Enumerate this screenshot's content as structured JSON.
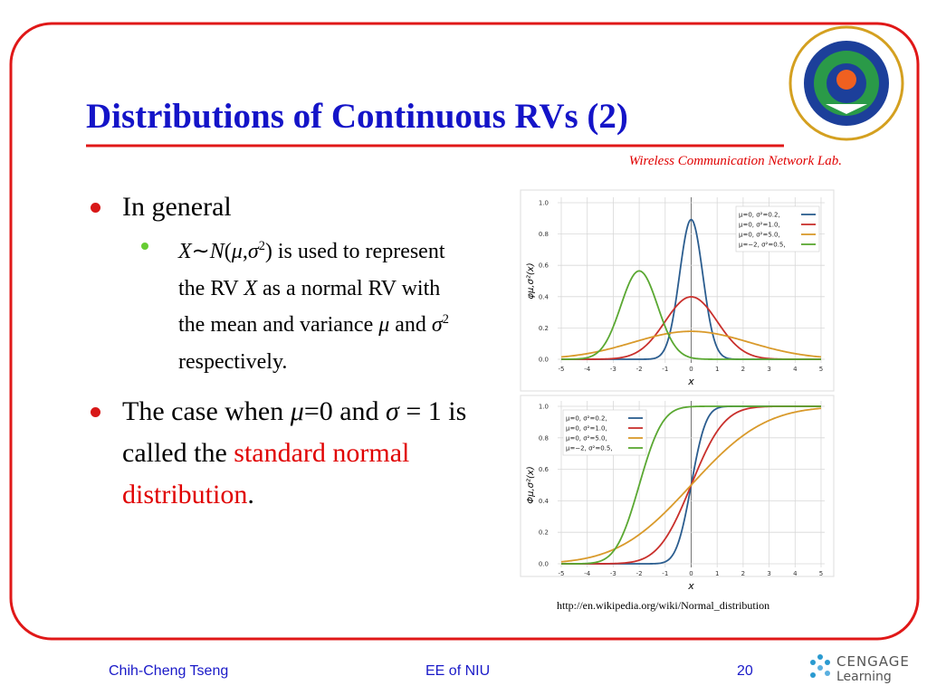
{
  "header": {
    "title": "Distributions of Continuous RVs (2)",
    "lab": "Wireless Communication Network Lab."
  },
  "bullets": [
    {
      "level": 1,
      "segments": [
        {
          "t": "In general"
        }
      ]
    },
    {
      "level": 2,
      "segments": [
        {
          "t": "X",
          "s": "i"
        },
        {
          "t": "∼"
        },
        {
          "t": "N",
          "s": "i"
        },
        {
          "t": "("
        },
        {
          "t": "μ",
          "s": "i"
        },
        {
          "t": ","
        },
        {
          "t": "σ",
          "s": "i"
        },
        {
          "t": "2",
          "s": "sup"
        },
        {
          "t": ") is used to represent the RV "
        },
        {
          "t": "X",
          "s": "i"
        },
        {
          "t": " as a normal RV with the mean and variance "
        },
        {
          "t": "μ",
          "s": "i"
        },
        {
          "t": " and "
        },
        {
          "t": "σ",
          "s": "i"
        },
        {
          "t": "2",
          "s": "sup"
        },
        {
          "t": " respectively."
        }
      ]
    },
    {
      "level": 1,
      "segments": [
        {
          "t": "The case when "
        },
        {
          "t": "μ",
          "s": "i"
        },
        {
          "t": "=0 and "
        },
        {
          "t": "σ",
          "s": "i"
        },
        {
          "t": " = 1 is called the "
        },
        {
          "t": "standard normal distribution",
          "s": "red"
        },
        {
          "t": "."
        }
      ]
    }
  ],
  "figures": [
    {
      "type": "pdf",
      "ylabel": "φμ,σ²(x)",
      "xlabel": "x",
      "xlim": [
        -5,
        5
      ],
      "ylim": [
        0,
        1
      ],
      "xticks": [
        -5,
        -4,
        -3,
        -2,
        -1,
        0,
        1,
        2,
        3,
        4,
        5
      ],
      "yticks": [
        {
          "value": 0,
          "label": "0.0"
        },
        0.2,
        0.4,
        0.6,
        0.8,
        {
          "value": 1,
          "label": "1.0"
        }
      ],
      "grid": true,
      "legend": "upper right",
      "series": [
        {
          "name": "μ=0,   σ²=0.2,",
          "color": "#2b5d8f",
          "mu": 0,
          "sigma2": 0.2
        },
        {
          "name": "μ=0,   σ²=1.0,",
          "color": "#c9302c",
          "mu": 0,
          "sigma2": 1.0
        },
        {
          "name": "μ=0,   σ²=5.0,",
          "color": "#d99a2b",
          "mu": 0,
          "sigma2": 5.0
        },
        {
          "name": "μ=−2, σ²=0.5,",
          "color": "#5aa832",
          "mu": -2,
          "sigma2": 0.5
        }
      ]
    },
    {
      "type": "cdf",
      "ylabel": "Φμ,σ²(x)",
      "xlabel": "x",
      "xlim": [
        -5,
        5
      ],
      "ylim": [
        0,
        1
      ],
      "xticks": [
        -5,
        -4,
        -3,
        -2,
        -1,
        0,
        1,
        2,
        3,
        4,
        5
      ],
      "yticks": [
        {
          "value": 0,
          "label": "0.0"
        },
        0.2,
        0.4,
        0.6,
        0.8,
        {
          "value": 1,
          "label": "1.0"
        }
      ],
      "grid": true,
      "legend": "upper left",
      "series": [
        {
          "name": "μ=0,   σ²=0.2,",
          "color": "#2b5d8f",
          "mu": 0,
          "sigma2": 0.2
        },
        {
          "name": "μ=0,   σ²=1.0,",
          "color": "#c9302c",
          "mu": 0,
          "sigma2": 1.0
        },
        {
          "name": "μ=0,   σ²=5.0,",
          "color": "#d99a2b",
          "mu": 0,
          "sigma2": 5.0
        },
        {
          "name": "μ=−2, σ²=0.5,",
          "color": "#5aa832",
          "mu": -2,
          "sigma2": 0.5
        }
      ]
    }
  ],
  "source": "http://en.wikipedia.org/wiki/Normal_distribution",
  "footer": {
    "author": "Chih-Cheng Tseng",
    "course": "EE of NIU",
    "page": "20",
    "logo": "CENGAGE",
    "logo_sub": "Learning"
  }
}
